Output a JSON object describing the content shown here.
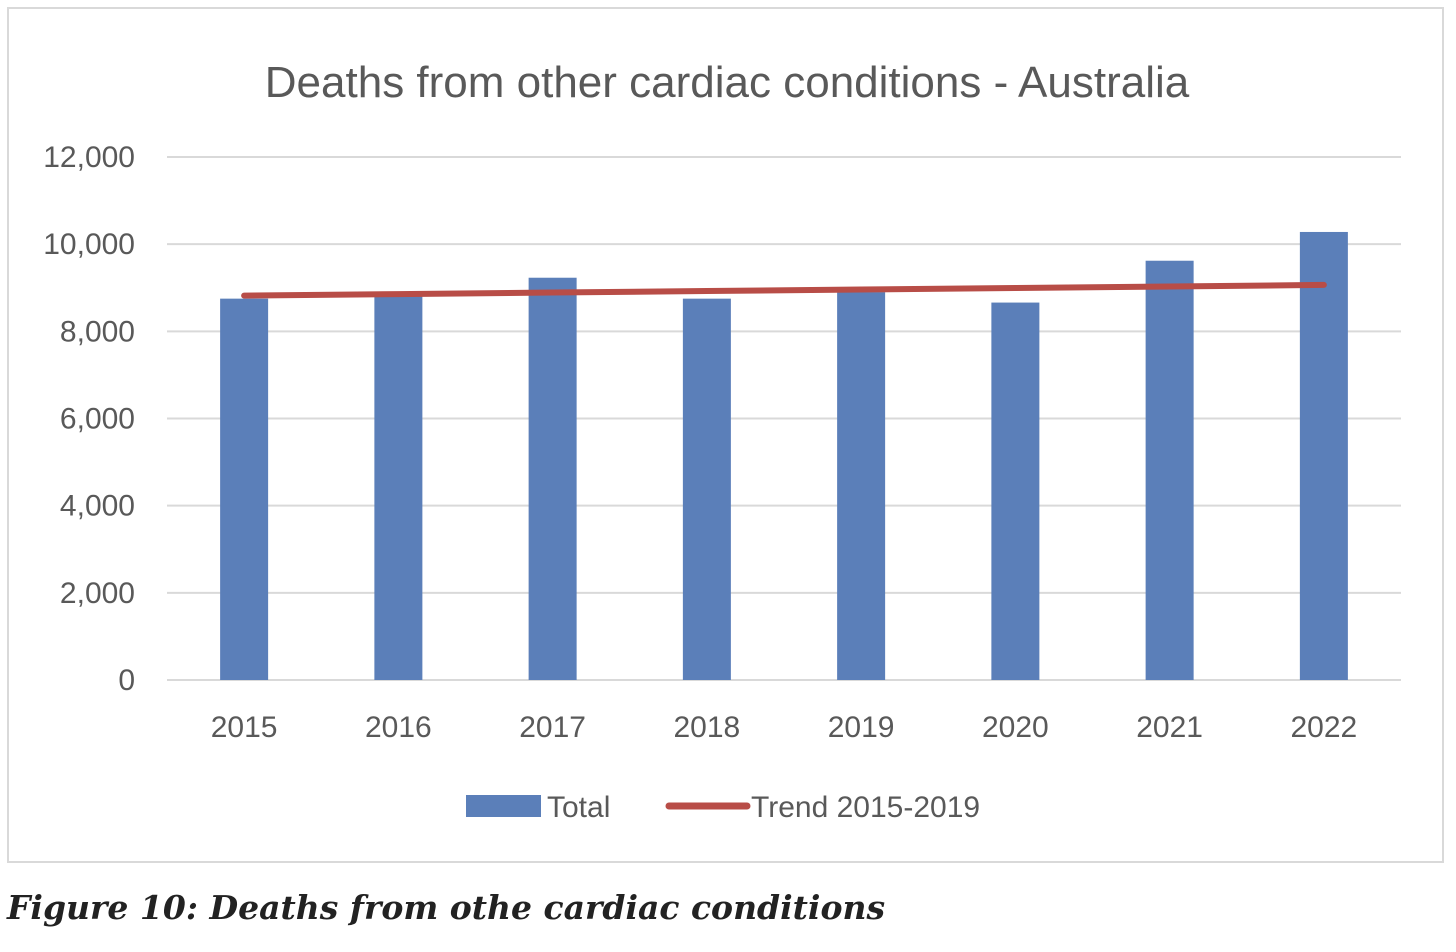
{
  "chart_data": {
    "type": "bar",
    "title": "Deaths from other cardiac conditions - Australia",
    "categories": [
      "2015",
      "2016",
      "2017",
      "2018",
      "2019",
      "2020",
      "2021",
      "2022"
    ],
    "series": [
      {
        "name": "Total",
        "type": "bar",
        "color": "#5b7fb9",
        "values": [
          8750,
          8850,
          9230,
          8750,
          8900,
          8660,
          9620,
          10280
        ]
      },
      {
        "name": "Trend 2015-2019",
        "type": "line",
        "color": "#b84d47",
        "values": [
          8820,
          8855,
          8890,
          8925,
          8960,
          8995,
          9030,
          9065
        ]
      }
    ],
    "y_ticks": [
      "0",
      "2,000",
      "4,000",
      "6,000",
      "8,000",
      "10,000",
      "12,000"
    ],
    "ylim": [
      0,
      12000
    ],
    "grid": true,
    "legend_position": "bottom"
  },
  "caption": "Figure 10: Deaths from othe cardiac conditions"
}
